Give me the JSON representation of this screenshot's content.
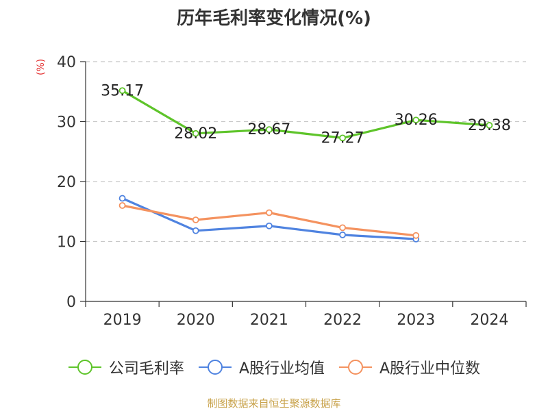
{
  "title": "历年毛利率变化情况(%)",
  "unit_label": "(%)",
  "source": "制图数据来自恒生聚源数据库",
  "colors": {
    "series_0": "#5ec42a",
    "series_1": "#4f83e0",
    "series_2": "#f4925f",
    "grid": "#c8c8c8",
    "axis": "#333333"
  },
  "chart_data": {
    "type": "line",
    "title": "历年毛利率变化情况(%)",
    "ylabel": "(%)",
    "xlabel": "",
    "categories": [
      "2019",
      "2020",
      "2021",
      "2022",
      "2023",
      "2024"
    ],
    "ylim": [
      0,
      40
    ],
    "yticks": [
      0,
      10,
      20,
      30,
      40
    ],
    "grid": "horizontal dashed",
    "legend_position": "bottom",
    "series": [
      {
        "name": "公司毛利率",
        "values": [
          35.17,
          28.02,
          28.67,
          27.27,
          30.26,
          29.38
        ],
        "labels": [
          "35.17",
          "28.02",
          "28.67",
          "27.27",
          "30.26",
          "29.38"
        ]
      },
      {
        "name": "A股行业均值",
        "values": [
          17.2,
          11.8,
          12.6,
          11.1,
          10.4,
          null
        ]
      },
      {
        "name": "A股行业中位数",
        "values": [
          16.0,
          13.6,
          14.8,
          12.3,
          11.0,
          null
        ]
      }
    ]
  }
}
